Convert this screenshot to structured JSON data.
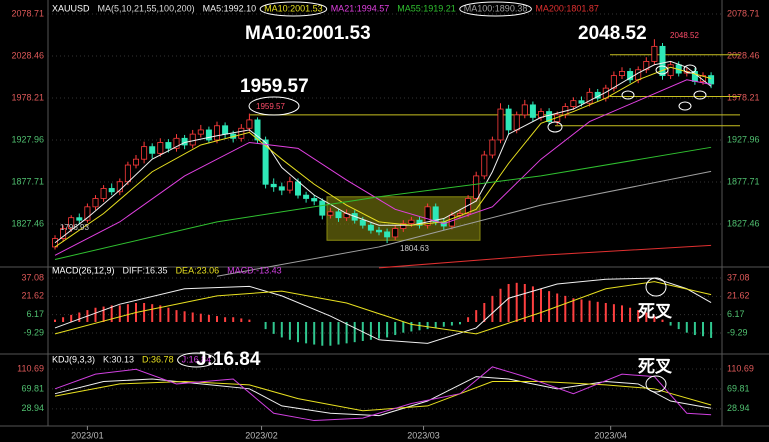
{
  "chart_data": [
    {
      "type": "candlestick",
      "title": "XAUUSD",
      "indicator": "MA(5,10,21,55,100,200)",
      "up_color": "#ff3b3b",
      "down_color": "#2ee8b8",
      "ylim": [
        1778.4,
        2085.9
      ],
      "yticks": [
        1827.46,
        1877.71,
        1927.96,
        1978.21,
        2028.46,
        2078.71
      ],
      "ohlc": [
        [
          1800,
          1814,
          1796.93,
          1810
        ],
        [
          1810,
          1826,
          1806,
          1822
        ],
        [
          1822,
          1838,
          1818,
          1835
        ],
        [
          1835,
          1840,
          1828,
          1832
        ],
        [
          1832,
          1852,
          1829,
          1848
        ],
        [
          1848,
          1862,
          1844,
          1858
        ],
        [
          1858,
          1874,
          1854,
          1870
        ],
        [
          1870,
          1876,
          1862,
          1866
        ],
        [
          1866,
          1882,
          1862,
          1878
        ],
        [
          1878,
          1902,
          1874,
          1898
        ],
        [
          1898,
          1910,
          1894,
          1905
        ],
        [
          1905,
          1926,
          1900,
          1920
        ],
        [
          1920,
          1924,
          1906,
          1912
        ],
        [
          1912,
          1930,
          1908,
          1925
        ],
        [
          1925,
          1929,
          1913,
          1918
        ],
        [
          1918,
          1935,
          1914,
          1930
        ],
        [
          1930,
          1934,
          1917,
          1922
        ],
        [
          1922,
          1940,
          1918,
          1935
        ],
        [
          1935,
          1946,
          1931,
          1940
        ],
        [
          1940,
          1944,
          1924,
          1928
        ],
        [
          1928,
          1950,
          1924,
          1945
        ],
        [
          1945,
          1949,
          1930,
          1935
        ],
        [
          1935,
          1939,
          1925,
          1930
        ],
        [
          1930,
          1947,
          1926,
          1942
        ],
        [
          1942,
          1959.57,
          1938,
          1952
        ],
        [
          1952,
          1955,
          1924,
          1928
        ],
        [
          1928,
          1932,
          1870,
          1875
        ],
        [
          1875,
          1882,
          1866,
          1872
        ],
        [
          1872,
          1877,
          1862,
          1868
        ],
        [
          1868,
          1884,
          1864,
          1878
        ],
        [
          1878,
          1882,
          1858,
          1862
        ],
        [
          1862,
          1866,
          1853,
          1858
        ],
        [
          1858,
          1862,
          1850,
          1855
        ],
        [
          1855,
          1858,
          1833,
          1838
        ],
        [
          1838,
          1847,
          1834,
          1842
        ],
        [
          1842,
          1846,
          1830,
          1835
        ],
        [
          1835,
          1845,
          1831,
          1840
        ],
        [
          1840,
          1844,
          1828,
          1832
        ],
        [
          1832,
          1836,
          1822,
          1826
        ],
        [
          1826,
          1830,
          1816,
          1820
        ],
        [
          1820,
          1824,
          1814,
          1818
        ],
        [
          1818,
          1822,
          1804.63,
          1812
        ],
        [
          1812,
          1826,
          1808,
          1822
        ],
        [
          1822,
          1832,
          1818,
          1828
        ],
        [
          1828,
          1836,
          1824,
          1832
        ],
        [
          1832,
          1836,
          1822,
          1826
        ],
        [
          1826,
          1852,
          1822,
          1848
        ],
        [
          1848,
          1852,
          1826,
          1830
        ],
        [
          1830,
          1834,
          1820,
          1825
        ],
        [
          1825,
          1842,
          1821,
          1838
        ],
        [
          1838,
          1844,
          1834,
          1840
        ],
        [
          1840,
          1862,
          1836,
          1858
        ],
        [
          1858,
          1890,
          1854,
          1885
        ],
        [
          1885,
          1915,
          1881,
          1910
        ],
        [
          1910,
          1932,
          1906,
          1928
        ],
        [
          1928,
          1972,
          1924,
          1965
        ],
        [
          1965,
          1970,
          1935,
          1940
        ],
        [
          1940,
          1962,
          1936,
          1958
        ],
        [
          1958,
          1976,
          1954,
          1970
        ],
        [
          1970,
          1974,
          1950,
          1955
        ],
        [
          1955,
          1966,
          1951,
          1962
        ],
        [
          1962,
          1966,
          1946,
          1950
        ],
        [
          1950,
          1962,
          1946,
          1958
        ],
        [
          1958,
          1972,
          1954,
          1968
        ],
        [
          1968,
          1979,
          1964,
          1975
        ],
        [
          1975,
          1980,
          1968,
          1972
        ],
        [
          1972,
          1990,
          1968,
          1985
        ],
        [
          1985,
          1989,
          1974,
          1978
        ],
        [
          1978,
          1994,
          1974,
          1990
        ],
        [
          1990,
          2010,
          1986,
          2005
        ],
        [
          2005,
          2015,
          2001,
          2010
        ],
        [
          2010,
          2014,
          1996,
          2000
        ],
        [
          2000,
          2016,
          1996,
          2012
        ],
        [
          2012,
          2027,
          2008,
          2022
        ],
        [
          2022,
          2048.52,
          2018,
          2040
        ],
        [
          2040,
          2044,
          2000,
          2005
        ],
        [
          2005,
          2022,
          2001,
          2018
        ],
        [
          2018,
          2022,
          2004,
          2008
        ],
        [
          2008,
          2014,
          2004,
          2010
        ],
        [
          2010,
          2014,
          1994,
          1998
        ],
        [
          1998,
          2009,
          1994,
          2005
        ],
        [
          2005,
          2009,
          1990,
          1995
        ]
      ],
      "series": [
        {
          "name": "MA5:1992.10",
          "color": "#f0f0f0",
          "x": [
            0,
            4,
            8,
            12,
            16,
            20,
            24,
            26,
            28,
            32,
            36,
            40,
            44,
            48,
            52,
            54,
            56,
            60,
            64,
            68,
            72,
            74,
            76,
            78,
            81
          ],
          "values": [
            1805,
            1835,
            1868,
            1905,
            1925,
            1933,
            1940,
            1925,
            1895,
            1862,
            1840,
            1826,
            1826,
            1834,
            1855,
            1890,
            1935,
            1955,
            1965,
            1985,
            2008,
            2018,
            2022,
            2015,
            1992.1
          ]
        },
        {
          "name": "MA10:2001.53",
          "color": "#e8e020",
          "x": [
            0,
            6,
            12,
            18,
            24,
            28,
            32,
            36,
            40,
            44,
            48,
            52,
            56,
            60,
            64,
            68,
            72,
            76,
            81
          ],
          "values": [
            1800,
            1840,
            1890,
            1922,
            1937,
            1905,
            1875,
            1850,
            1830,
            1826,
            1830,
            1845,
            1900,
            1948,
            1962,
            1978,
            2000,
            2015,
            2001.53
          ]
        },
        {
          "name": "MA21:1994.57",
          "color": "#e040e0",
          "x": [
            0,
            8,
            16,
            24,
            30,
            36,
            42,
            48,
            54,
            60,
            66,
            72,
            78,
            81
          ],
          "values": [
            1790,
            1830,
            1885,
            1925,
            1918,
            1880,
            1845,
            1828,
            1848,
            1905,
            1950,
            1975,
            2000,
            1994.57
          ]
        },
        {
          "name": "MA55:1919.21",
          "color": "#30c030",
          "x": [
            0,
            20,
            40,
            60,
            81
          ],
          "values": [
            1785,
            1830,
            1860,
            1885,
            1919.21
          ]
        },
        {
          "name": "MA100:1890.38",
          "color": "#a0a0a0",
          "x": [
            20,
            40,
            60,
            81
          ],
          "values": [
            1765,
            1800,
            1850,
            1890.38
          ]
        },
        {
          "name": "MA200:1801.87",
          "color": "#e03030",
          "x": [
            40,
            60,
            81
          ],
          "values": [
            1775,
            1790,
            1801.87
          ]
        }
      ],
      "levels": [
        2030,
        1980,
        1958,
        1945
      ],
      "level_color": "#c8c020",
      "zone": [
        1808,
        1860
      ],
      "zone_color": "#8a8a10",
      "annotations": [
        "MA10:2001.53",
        "1959.57",
        "2048.52"
      ],
      "price_labels": [
        "2048.52",
        "1959.57",
        "1796.93",
        "1804.63"
      ]
    },
    {
      "type": "bar",
      "title": "MACD(26,12,9)",
      "bar_label": "MACD:-13.43",
      "up_color": "#ff4040",
      "down_color": "#30c890",
      "ylim": [
        -23.6,
        43.8
      ],
      "yticks": [
        -9.29,
        6.17,
        21.62,
        37.08
      ],
      "values": [
        2,
        4,
        6,
        8,
        10,
        12,
        13,
        14,
        14,
        15,
        16,
        16,
        15,
        14,
        12,
        10,
        9,
        8,
        7,
        6,
        5,
        4,
        4,
        3,
        2,
        0,
        -6,
        -10,
        -13,
        -15,
        -17,
        -18,
        -19,
        -20,
        -20,
        -19,
        -18,
        -17,
        -16,
        -15,
        -14,
        -13,
        -11,
        -9,
        -8,
        -7,
        -6,
        -5,
        -4,
        -3,
        -2,
        4,
        10,
        16,
        22,
        28,
        32,
        33,
        32,
        30,
        28,
        26,
        24,
        22,
        20,
        19,
        18,
        17,
        16,
        15,
        14,
        12,
        10,
        8,
        5,
        2,
        -3,
        -6,
        -9,
        -11,
        -12,
        -13.43
      ],
      "series": [
        {
          "name": "DIFF:16.35",
          "color": "#f0f0f0",
          "x": [
            0,
            8,
            16,
            24,
            28,
            34,
            40,
            46,
            52,
            56,
            62,
            68,
            74,
            78,
            81
          ],
          "values": [
            -5,
            15,
            28,
            30,
            22,
            5,
            -15,
            -18,
            -5,
            20,
            32,
            36,
            37,
            28,
            16.35
          ]
        },
        {
          "name": "DEA:23.06",
          "color": "#e8e020",
          "x": [
            0,
            10,
            20,
            28,
            36,
            44,
            52,
            60,
            68,
            74,
            81
          ],
          "values": [
            -10,
            8,
            22,
            26,
            16,
            -2,
            -10,
            8,
            28,
            34,
            23.06
          ]
        }
      ],
      "annotation": "死叉"
    },
    {
      "type": "line",
      "title": "KDJ(9,3,3)",
      "ylim": [
        0,
        129
      ],
      "yticks": [
        28.94,
        69.81,
        110.69
      ],
      "series": [
        {
          "name": "K:30.13",
          "color": "#f0f0f0",
          "x": [
            0,
            6,
            12,
            18,
            24,
            28,
            34,
            40,
            46,
            52,
            56,
            62,
            68,
            72,
            76,
            81
          ],
          "values": [
            60,
            85,
            90,
            80,
            70,
            35,
            20,
            15,
            45,
            95,
            90,
            70,
            85,
            80,
            45,
            30.13
          ]
        },
        {
          "name": "D:36.78",
          "color": "#e8e020",
          "x": [
            0,
            8,
            16,
            24,
            30,
            38,
            46,
            54,
            60,
            68,
            74,
            81
          ],
          "values": [
            55,
            80,
            85,
            78,
            50,
            25,
            35,
            85,
            85,
            78,
            70,
            36.78
          ]
        },
        {
          "name": "J:16.84",
          "color": "#d040e0",
          "x": [
            0,
            5,
            10,
            15,
            22,
            27,
            32,
            38,
            44,
            50,
            54,
            58,
            64,
            70,
            74,
            78,
            81
          ],
          "values": [
            70,
            100,
            110,
            80,
            90,
            20,
            5,
            10,
            40,
            60,
            115,
            95,
            60,
            100,
            95,
            20,
            16.84
          ]
        }
      ],
      "annotation": "死叉",
      "callout": "J:16.84",
      "x_ticks": [
        {
          "value": 4,
          "label": "2023/01"
        },
        {
          "value": 25.5,
          "label": "2023/02"
        },
        {
          "value": 45.5,
          "label": "2023/03"
        },
        {
          "value": 68.6,
          "label": "2023/04"
        }
      ]
    }
  ]
}
